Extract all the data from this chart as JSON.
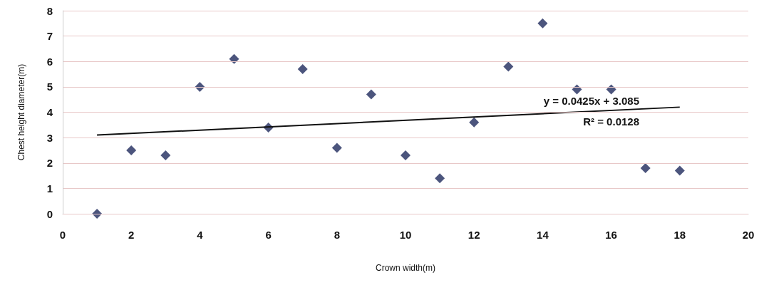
{
  "chart_data": {
    "type": "scatter",
    "xlabel": "Crown width(m)",
    "ylabel": "Chest height diameter(m)",
    "xlim": [
      0,
      20
    ],
    "xticks": [
      0,
      2,
      4,
      6,
      8,
      10,
      12,
      14,
      16,
      18,
      20
    ],
    "ylim": [
      0,
      8
    ],
    "yticks": [
      0,
      1,
      2,
      3,
      4,
      5,
      6,
      7,
      8
    ],
    "grid": "y",
    "marker": "diamond",
    "series": [
      {
        "color": "#1f2a5c",
        "x": [
          1,
          2,
          3,
          4,
          5,
          6,
          7,
          8,
          9,
          10,
          11,
          12,
          13,
          14,
          15,
          16,
          17,
          18
        ],
        "values": [
          0,
          2.5,
          2.3,
          5,
          6.1,
          3.4,
          5.7,
          2.6,
          4.7,
          2.3,
          1.4,
          3.6,
          5.8,
          7.5,
          4.9,
          4.9,
          1.8,
          1.7
        ]
      },
      {
        "type": "line",
        "color": "#111111",
        "marker": "none",
        "x": [
          1,
          18
        ],
        "values": [
          3.1,
          4.2
        ]
      }
    ],
    "annotations": [
      "y = 0.0425x + 3.085",
      "R² = 0.0128"
    ]
  }
}
